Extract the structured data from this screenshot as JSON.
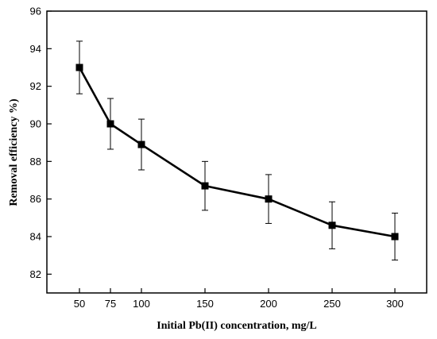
{
  "chart_data": {
    "type": "line",
    "title": "",
    "xlabel": "Initial Pb(II) concentration, mg/L",
    "ylabel": "Removal efficiency %)",
    "x": [
      50,
      75,
      100,
      150,
      200,
      250,
      300
    ],
    "series": [
      {
        "name": "",
        "values": [
          93.0,
          90.0,
          88.9,
          86.7,
          86.0,
          84.6,
          84.0
        ],
        "error": [
          1.4,
          1.35,
          1.35,
          1.3,
          1.3,
          1.25,
          1.25
        ]
      }
    ],
    "xticks": [
      "50",
      "75",
      "100",
      "150",
      "200",
      "250",
      "300"
    ],
    "yticks": [
      "82",
      "84",
      "86",
      "88",
      "90",
      "92",
      "94",
      "96"
    ],
    "ylim": [
      81,
      96
    ],
    "grid": false,
    "legend": "none",
    "colors": {
      "line": "#000000",
      "marker": "#000000"
    }
  }
}
